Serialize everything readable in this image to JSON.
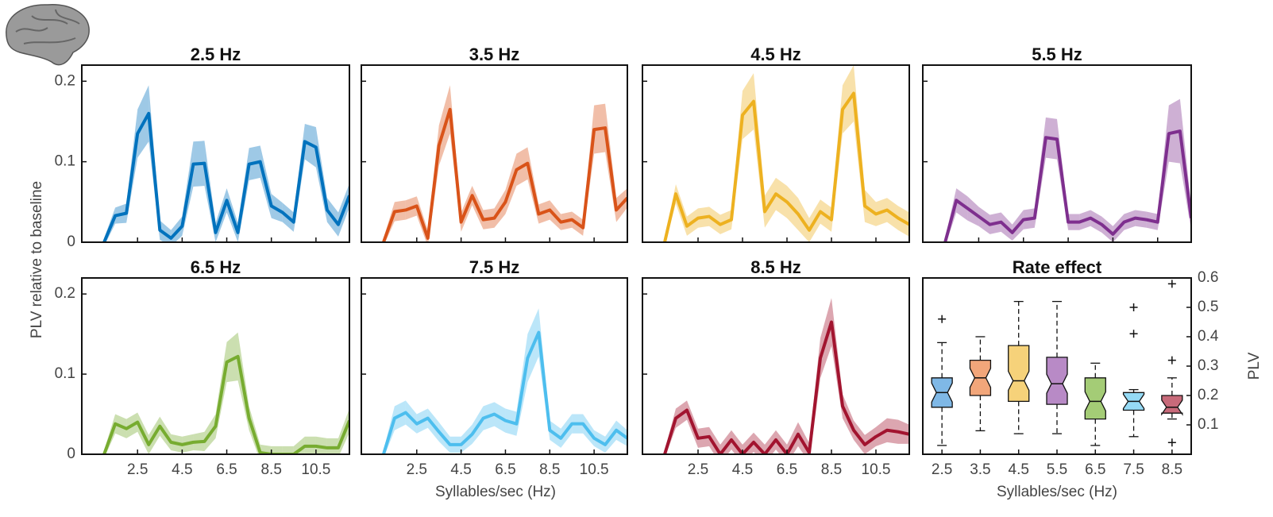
{
  "chart_data": [
    {
      "type": "line",
      "title": "2.5 Hz",
      "ylabel": "PLV relative to baseline",
      "x": [
        1,
        1.5,
        2,
        2.5,
        3,
        3.5,
        4,
        4.5,
        5,
        5.5,
        6,
        6.5,
        7,
        7.5,
        8,
        8.5,
        9,
        9.5,
        10,
        10.5,
        11,
        11.5,
        12
      ],
      "series": [
        {
          "color": "#0072bd",
          "values": [
            0,
            0.033,
            0.036,
            0.135,
            0.16,
            0.015,
            0.005,
            0.02,
            0.097,
            0.098,
            0.012,
            0.052,
            0.012,
            0.097,
            0.1,
            0.045,
            0.037,
            0.025,
            0.125,
            0.118,
            0.04,
            0.022,
            0.058
          ],
          "errors": [
            0.005,
            0.01,
            0.012,
            0.03,
            0.035,
            0.012,
            0.01,
            0.012,
            0.028,
            0.028,
            0.012,
            0.015,
            0.012,
            0.02,
            0.02,
            0.015,
            0.012,
            0.012,
            0.022,
            0.025,
            0.015,
            0.015,
            0.015
          ]
        }
      ],
      "xlim": [
        0,
        12
      ],
      "ylim": [
        0,
        0.22
      ],
      "xticks": [
        2.5,
        4.5,
        6.5,
        8.5,
        10.5
      ],
      "yticks": [
        0,
        0.1,
        0.2
      ]
    },
    {
      "type": "line",
      "title": "3.5 Hz",
      "x": [
        1,
        1.5,
        2,
        2.5,
        3,
        3.5,
        4,
        4.5,
        5,
        5.5,
        6,
        6.5,
        7,
        7.5,
        8,
        8.5,
        9,
        9.5,
        10,
        10.5,
        11,
        11.5,
        12
      ],
      "series": [
        {
          "color": "#d95319",
          "values": [
            0,
            0.038,
            0.04,
            0.045,
            0.005,
            0.12,
            0.165,
            0.025,
            0.058,
            0.028,
            0.03,
            0.05,
            0.09,
            0.098,
            0.035,
            0.04,
            0.025,
            0.028,
            0.018,
            0.14,
            0.142,
            0.04,
            0.055
          ],
          "errors": [
            0.005,
            0.012,
            0.012,
            0.012,
            0.01,
            0.025,
            0.03,
            0.012,
            0.012,
            0.012,
            0.012,
            0.015,
            0.02,
            0.02,
            0.012,
            0.012,
            0.01,
            0.01,
            0.01,
            0.03,
            0.03,
            0.015,
            0.012
          ]
        }
      ],
      "xlim": [
        0,
        12
      ],
      "ylim": [
        0,
        0.22
      ],
      "xticks": [
        2.5,
        4.5,
        6.5,
        8.5,
        10.5
      ],
      "yticks": [
        0,
        0.1,
        0.2
      ]
    },
    {
      "type": "line",
      "title": "4.5 Hz",
      "x": [
        1,
        1.5,
        2,
        2.5,
        3,
        3.5,
        4,
        4.5,
        5,
        5.5,
        6,
        6.5,
        7,
        7.5,
        8,
        8.5,
        9,
        9.5,
        10,
        10.5,
        11,
        11.5,
        12
      ],
      "series": [
        {
          "color": "#edb120",
          "values": [
            0,
            0.06,
            0.02,
            0.03,
            0.032,
            0.022,
            0.028,
            0.158,
            0.175,
            0.038,
            0.06,
            0.05,
            0.035,
            0.015,
            0.038,
            0.028,
            0.165,
            0.185,
            0.045,
            0.035,
            0.04,
            0.03,
            0.022
          ],
          "errors": [
            0.005,
            0.012,
            0.012,
            0.012,
            0.012,
            0.012,
            0.012,
            0.03,
            0.035,
            0.02,
            0.02,
            0.02,
            0.02,
            0.015,
            0.015,
            0.015,
            0.03,
            0.035,
            0.02,
            0.015,
            0.015,
            0.015,
            0.015
          ]
        }
      ],
      "xlim": [
        0,
        12
      ],
      "ylim": [
        0,
        0.22
      ],
      "xticks": [
        2.5,
        4.5,
        6.5,
        8.5,
        10.5
      ],
      "yticks": [
        0,
        0.1,
        0.2
      ]
    },
    {
      "type": "line",
      "title": "5.5 Hz",
      "x": [
        1,
        1.5,
        2,
        2.5,
        3,
        3.5,
        4,
        4.5,
        5,
        5.5,
        6,
        6.5,
        7,
        7.5,
        8,
        8.5,
        9,
        9.5,
        10,
        10.5,
        11,
        11.5,
        12
      ],
      "series": [
        {
          "color": "#7e2f8e",
          "values": [
            0,
            0.052,
            0.042,
            0.032,
            0.022,
            0.025,
            0.012,
            0.028,
            0.03,
            0.13,
            0.128,
            0.025,
            0.025,
            0.03,
            0.022,
            0.01,
            0.025,
            0.03,
            0.028,
            0.025,
            0.135,
            0.138,
            0.03
          ],
          "errors": [
            0.005,
            0.015,
            0.015,
            0.012,
            0.012,
            0.012,
            0.01,
            0.012,
            0.012,
            0.025,
            0.025,
            0.01,
            0.01,
            0.01,
            0.01,
            0.01,
            0.01,
            0.01,
            0.01,
            0.01,
            0.035,
            0.04,
            0.015
          ]
        }
      ],
      "xlim": [
        0,
        12
      ],
      "ylim": [
        0,
        0.22
      ],
      "xticks": [
        2.5,
        4.5,
        6.5,
        8.5,
        10.5
      ],
      "yticks": [
        0,
        0.1,
        0.2
      ]
    },
    {
      "type": "line",
      "title": "6.5 Hz",
      "x": [
        1,
        1.5,
        2,
        2.5,
        3,
        3.5,
        4,
        4.5,
        5,
        5.5,
        6,
        6.5,
        7,
        7.5,
        8,
        8.5,
        9,
        9.5,
        10,
        10.5,
        11,
        11.5,
        12
      ],
      "series": [
        {
          "color": "#77ac30",
          "values": [
            0,
            0.038,
            0.032,
            0.04,
            0.012,
            0.035,
            0.015,
            0.012,
            0.015,
            0.016,
            0.035,
            0.115,
            0.122,
            0.045,
            0.002,
            0,
            0,
            0,
            0.01,
            0.01,
            0.008,
            0.008,
            0.042
          ],
          "errors": [
            0.005,
            0.012,
            0.012,
            0.012,
            0.012,
            0.012,
            0.01,
            0.01,
            0.01,
            0.012,
            0.015,
            0.025,
            0.03,
            0.015,
            0.01,
            0.01,
            0.01,
            0.01,
            0.012,
            0.012,
            0.012,
            0.012,
            0.015
          ]
        }
      ],
      "xlim": [
        0,
        12
      ],
      "ylim": [
        0,
        0.22
      ],
      "xticks": [
        2.5,
        4.5,
        6.5,
        8.5,
        10.5
      ],
      "yticks": [
        0,
        0.1,
        0.2
      ]
    },
    {
      "type": "line",
      "title": "7.5 Hz",
      "xlabel": "Syllables/sec (Hz)",
      "x": [
        1,
        1.5,
        2,
        2.5,
        3,
        3.5,
        4,
        4.5,
        5,
        5.5,
        6,
        6.5,
        7,
        7.5,
        8,
        8.5,
        9,
        9.5,
        10,
        10.5,
        11,
        11.5,
        12
      ],
      "series": [
        {
          "color": "#4dbeee",
          "values": [
            0,
            0.045,
            0.052,
            0.038,
            0.045,
            0.028,
            0.012,
            0.012,
            0.025,
            0.045,
            0.05,
            0.042,
            0.038,
            0.12,
            0.152,
            0.03,
            0.02,
            0.038,
            0.038,
            0.02,
            0.012,
            0.03,
            0.02
          ],
          "errors": [
            0.005,
            0.015,
            0.015,
            0.012,
            0.012,
            0.012,
            0.01,
            0.01,
            0.012,
            0.015,
            0.015,
            0.015,
            0.015,
            0.03,
            0.03,
            0.012,
            0.012,
            0.012,
            0.012,
            0.01,
            0.01,
            0.012,
            0.01
          ]
        }
      ],
      "xlim": [
        0,
        12
      ],
      "ylim": [
        0,
        0.22
      ],
      "xticks": [
        2.5,
        4.5,
        6.5,
        8.5,
        10.5
      ],
      "yticks": [
        0,
        0.1,
        0.2
      ]
    },
    {
      "type": "line",
      "title": "8.5 Hz",
      "x": [
        1,
        1.5,
        2,
        2.5,
        3,
        3.5,
        4,
        4.5,
        5,
        5.5,
        6,
        6.5,
        7,
        7.5,
        8,
        8.5,
        9,
        9.5,
        10,
        10.5,
        11,
        11.5,
        12
      ],
      "series": [
        {
          "color": "#a2142f",
          "values": [
            0,
            0.045,
            0.055,
            0.02,
            0.022,
            0,
            0.018,
            0,
            0.015,
            0,
            0.018,
            0,
            0.025,
            0.002,
            0.12,
            0.165,
            0.06,
            0.03,
            0.012,
            0.022,
            0.03,
            0.028,
            0.025
          ],
          "errors": [
            0.005,
            0.012,
            0.012,
            0.012,
            0.012,
            0.012,
            0.012,
            0.012,
            0.012,
            0.012,
            0.012,
            0.012,
            0.015,
            0.012,
            0.025,
            0.03,
            0.015,
            0.012,
            0.012,
            0.012,
            0.015,
            0.015,
            0.012
          ]
        }
      ],
      "xlim": [
        0,
        12
      ],
      "ylim": [
        0,
        0.22
      ],
      "xticks": [
        2.5,
        4.5,
        6.5,
        8.5,
        10.5
      ],
      "yticks": [
        0,
        0.1,
        0.2
      ]
    },
    {
      "type": "box",
      "title": "Rate effect",
      "ylabel": "PLV",
      "xlabel": "Syllables/sec (Hz)",
      "categories": [
        "2.5",
        "3.5",
        "4.5",
        "5.5",
        "6.5",
        "7.5",
        "8.5"
      ],
      "boxes": [
        {
          "color": "#7fb8e6",
          "whisker_low": 0.03,
          "q1": 0.16,
          "median": 0.21,
          "q3": 0.26,
          "whisker_high": 0.38,
          "outliers": [
            0.46
          ]
        },
        {
          "color": "#f2a67a",
          "whisker_low": 0.08,
          "q1": 0.2,
          "median": 0.26,
          "q3": 0.32,
          "whisker_high": 0.4,
          "outliers": []
        },
        {
          "color": "#f6d27a",
          "whisker_low": 0.07,
          "q1": 0.18,
          "median": 0.25,
          "q3": 0.37,
          "whisker_high": 0.52,
          "outliers": []
        },
        {
          "color": "#b88ac6",
          "whisker_low": 0.07,
          "q1": 0.17,
          "median": 0.24,
          "q3": 0.33,
          "whisker_high": 0.52,
          "outliers": []
        },
        {
          "color": "#a4cc76",
          "whisker_low": 0.03,
          "q1": 0.12,
          "median": 0.18,
          "q3": 0.26,
          "whisker_high": 0.31,
          "outliers": []
        },
        {
          "color": "#95daf5",
          "whisker_low": 0.06,
          "q1": 0.15,
          "median": 0.18,
          "q3": 0.21,
          "whisker_high": 0.22,
          "outliers": [
            0.41,
            0.5
          ]
        },
        {
          "color": "#c86a7a",
          "whisker_low": 0.12,
          "q1": 0.14,
          "median": 0.16,
          "q3": 0.2,
          "whisker_high": 0.26,
          "outliers": [
            0.04,
            0.32,
            0.58
          ]
        }
      ],
      "y2lim": [
        0,
        0.6
      ],
      "y2ticks": [
        0.1,
        0.2,
        0.3,
        0.4,
        0.5,
        0.6
      ]
    }
  ]
}
